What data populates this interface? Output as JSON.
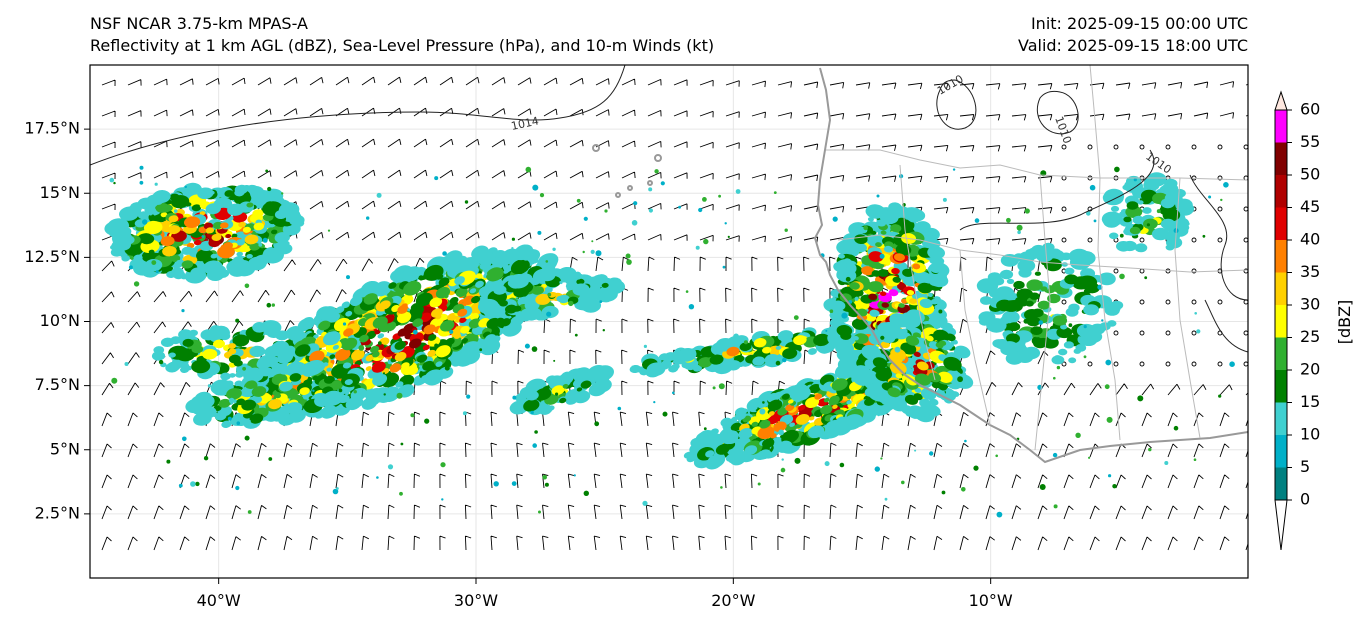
{
  "header": {
    "title_line1": "NSF NCAR 3.75-km MPAS-A",
    "title_line2": "Reflectivity at 1 km AGL (dBZ), Sea-Level Pressure (hPa), and 10-m Winds (kt)",
    "init": "Init: 2025-09-15 00:00 UTC",
    "valid": "Valid: 2025-09-15 18:00 UTC"
  },
  "map": {
    "lon_range": [
      -45,
      0
    ],
    "lat_range": [
      0,
      20
    ],
    "lat_ticks": [
      {
        "value": 2.5,
        "label": "2.5°N"
      },
      {
        "value": 5,
        "label": "5°N"
      },
      {
        "value": 7.5,
        "label": "7.5°N"
      },
      {
        "value": 10,
        "label": "10°N"
      },
      {
        "value": 12.5,
        "label": "12.5°N"
      },
      {
        "value": 15,
        "label": "15°N"
      },
      {
        "value": 17.5,
        "label": "17.5°N"
      }
    ],
    "lon_ticks": [
      {
        "value": -40,
        "label": "40°W"
      },
      {
        "value": -30,
        "label": "30°W"
      },
      {
        "value": -20,
        "label": "20°W"
      },
      {
        "value": -10,
        "label": "10°W"
      }
    ],
    "pressure_contours": [
      {
        "label": "1014"
      },
      {
        "label": "1010"
      },
      {
        "label": "1010"
      },
      {
        "label": "1010"
      }
    ],
    "storm_clusters": [
      {
        "name": "western-cluster",
        "lon": -40.5,
        "lat": 13.5,
        "max_dbz": 50
      },
      {
        "name": "central-band",
        "lon": -33,
        "lat": 9.5,
        "max_dbz": 50
      },
      {
        "name": "eastern-band",
        "lon": -17,
        "lat": 6.5,
        "max_dbz": 45
      },
      {
        "name": "coastal-cluster",
        "lon": -14,
        "lat": 11,
        "max_dbz": 55
      }
    ]
  },
  "colorbar": {
    "unit_label": "[dBZ]",
    "ticks": [
      "0",
      "5",
      "10",
      "15",
      "20",
      "25",
      "30",
      "35",
      "40",
      "45",
      "50",
      "55",
      "60"
    ],
    "colors": [
      "#008080",
      "#00b0c8",
      "#40d0d0",
      "#008000",
      "#30b030",
      "#ffff00",
      "#ffd000",
      "#ff8000",
      "#e00000",
      "#b00000",
      "#800000",
      "#ff00ff",
      "#ffe8e0"
    ]
  }
}
